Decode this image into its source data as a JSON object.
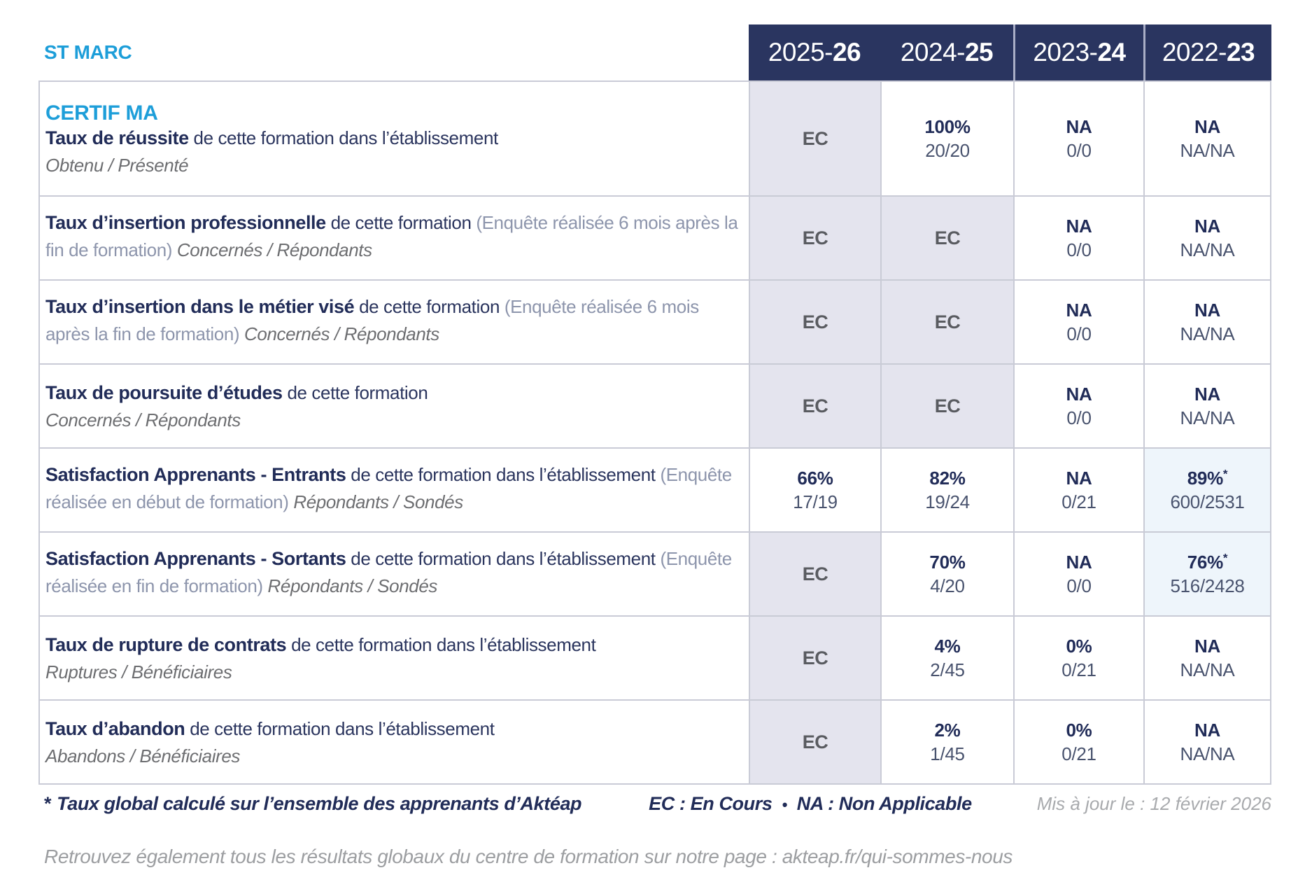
{
  "header": {
    "site": "ST MARC"
  },
  "columns": [
    {
      "prefix": "2025-",
      "bold": "26"
    },
    {
      "prefix": "2024-",
      "bold": "25"
    },
    {
      "prefix": "2023-",
      "bold": "24"
    },
    {
      "prefix": "2022-",
      "bold": "23"
    }
  ],
  "rows": [
    {
      "program": "CERTIF MA",
      "segments": [
        {
          "t": "Taux de réussite",
          "c": "t"
        },
        {
          "t": " de cette formation dans l’établissement",
          "c": "d"
        }
      ],
      "subtitle": "Obtenu / Présenté",
      "cells": [
        {
          "main": "EC",
          "ec": true
        },
        {
          "main": "100%",
          "sub": "20/20"
        },
        {
          "main": "NA",
          "sub": "0/0"
        },
        {
          "main": "NA",
          "sub": "NA/NA"
        }
      ]
    },
    {
      "segments": [
        {
          "t": "Taux d’insertion professionnelle",
          "c": "t"
        },
        {
          "t": " de cette formation ",
          "c": "d"
        },
        {
          "t": "(Enquête réalisée 6 mois après la fin de formation)",
          "c": "p"
        },
        {
          "t": " Concernés / Répondants",
          "c": "i"
        }
      ],
      "cells": [
        {
          "main": "EC",
          "ec": true
        },
        {
          "main": "EC",
          "ec": true
        },
        {
          "main": "NA",
          "sub": "0/0"
        },
        {
          "main": "NA",
          "sub": "NA/NA"
        }
      ]
    },
    {
      "segments": [
        {
          "t": "Taux d’insertion dans le métier visé",
          "c": "t"
        },
        {
          "t": " de cette formation ",
          "c": "d"
        },
        {
          "t": "(Enquête réalisée 6 mois après la fin de formation)",
          "c": "p"
        },
        {
          "t": " Concernés / Répondants",
          "c": "i"
        }
      ],
      "cells": [
        {
          "main": "EC",
          "ec": true
        },
        {
          "main": "EC",
          "ec": true
        },
        {
          "main": "NA",
          "sub": "0/0"
        },
        {
          "main": "NA",
          "sub": "NA/NA"
        }
      ]
    },
    {
      "segments": [
        {
          "t": "Taux de poursuite d’études",
          "c": "t"
        },
        {
          "t": " de cette formation",
          "c": "d"
        }
      ],
      "subtitle": "Concernés / Répondants",
      "cells": [
        {
          "main": "EC",
          "ec": true
        },
        {
          "main": "EC",
          "ec": true
        },
        {
          "main": "NA",
          "sub": "0/0"
        },
        {
          "main": "NA",
          "sub": "NA/NA"
        }
      ]
    },
    {
      "segments": [
        {
          "t": "Satisfaction Apprenants - Entrants",
          "c": "t"
        },
        {
          "t": " de cette formation dans l’établissement ",
          "c": "d"
        },
        {
          "t": "(Enquête réalisée en début de formation)",
          "c": "p"
        },
        {
          "t": " Répondants / Sondés",
          "c": "i"
        }
      ],
      "cells": [
        {
          "main": "66%",
          "sub": "17/19"
        },
        {
          "main": "82%",
          "sub": "19/24"
        },
        {
          "main": "NA",
          "sub": "0/21"
        },
        {
          "main": "89%",
          "sub": "600/2531",
          "star": true,
          "hl": true
        }
      ]
    },
    {
      "segments": [
        {
          "t": "Satisfaction Apprenants - Sortants",
          "c": "t"
        },
        {
          "t": " de cette formation dans l’établissement ",
          "c": "d"
        },
        {
          "t": "(Enquête réalisée en fin de formation)",
          "c": "p"
        },
        {
          "t": " Répondants / Sondés",
          "c": "i"
        }
      ],
      "cells": [
        {
          "main": "EC",
          "ec": true
        },
        {
          "main": "70%",
          "sub": "4/20"
        },
        {
          "main": "NA",
          "sub": "0/0"
        },
        {
          "main": "76%",
          "sub": "516/2428",
          "star": true,
          "hl": true
        }
      ]
    },
    {
      "segments": [
        {
          "t": "Taux de rupture de contrats",
          "c": "t"
        },
        {
          "t": " de cette formation dans l’établissement",
          "c": "d"
        }
      ],
      "subtitle": "Ruptures / Bénéficiaires",
      "cells": [
        {
          "main": "EC",
          "ec": true
        },
        {
          "main": "4%",
          "sub": "2/45"
        },
        {
          "main": "0%",
          "sub": "0/21"
        },
        {
          "main": "NA",
          "sub": "NA/NA"
        }
      ]
    },
    {
      "segments": [
        {
          "t": "Taux d’abandon",
          "c": "t"
        },
        {
          "t": " de cette formation dans l’établissement",
          "c": "d"
        }
      ],
      "subtitle": "Abandons / Bénéficiaires",
      "cells": [
        {
          "main": "EC",
          "ec": true
        },
        {
          "main": "2%",
          "sub": "1/45"
        },
        {
          "main": "0%",
          "sub": "0/21"
        },
        {
          "main": "NA",
          "sub": "NA/NA"
        }
      ]
    }
  ],
  "footer": {
    "note_star": "*",
    "note": "Taux global calculé sur l’ensemble des apprenants d’Aktéap",
    "legend_ec": "EC : En Cours",
    "legend_sep": "•",
    "legend_na": "NA : Non Applicable",
    "updated": "Mis à jour le : 12 février 2026",
    "more": "Retrouvez également tous les résultats globaux du centre de formation sur notre page : akteap.fr/qui-sommes-nous"
  },
  "colors": {
    "header_bg": "#2a3560",
    "accent_blue": "#1d9ed9",
    "navy_text": "#212c58",
    "ec_cell_bg": "#e4e4ee",
    "highlight_cell_bg": "#eef5fb",
    "grid_line": "#c9cbd6"
  }
}
